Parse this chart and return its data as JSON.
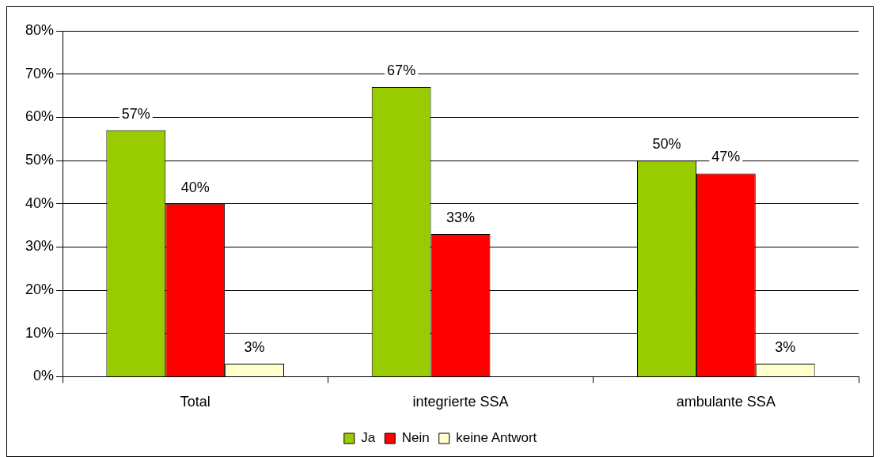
{
  "chart_data": {
    "type": "bar",
    "categories": [
      "Total",
      "integrierte SSA",
      "ambulante SSA"
    ],
    "series": [
      {
        "name": "Ja",
        "color": "#99cc00",
        "values": [
          57,
          67,
          50
        ],
        "value_labels": [
          "57%",
          "67%",
          "50%"
        ]
      },
      {
        "name": "Nein",
        "color": "#ff0000",
        "values": [
          40,
          33,
          47
        ],
        "value_labels": [
          "40%",
          "33%",
          "47%"
        ]
      },
      {
        "name": "keine Antwort",
        "color": "#ffffcc",
        "values": [
          3,
          null,
          3
        ],
        "value_labels": [
          "3%",
          null,
          "3%"
        ]
      }
    ],
    "ylim": [
      0,
      80
    ],
    "yticks": [
      {
        "value": 0,
        "label": "0%"
      },
      {
        "value": 10,
        "label": "10%"
      },
      {
        "value": 20,
        "label": "20%"
      },
      {
        "value": 30,
        "label": "30%"
      },
      {
        "value": 40,
        "label": "40%"
      },
      {
        "value": 50,
        "label": "50%"
      },
      {
        "value": 60,
        "label": "60%"
      },
      {
        "value": 70,
        "label": "70%"
      },
      {
        "value": 80,
        "label": "80%"
      }
    ],
    "grid": "y",
    "legend": "bottom"
  }
}
